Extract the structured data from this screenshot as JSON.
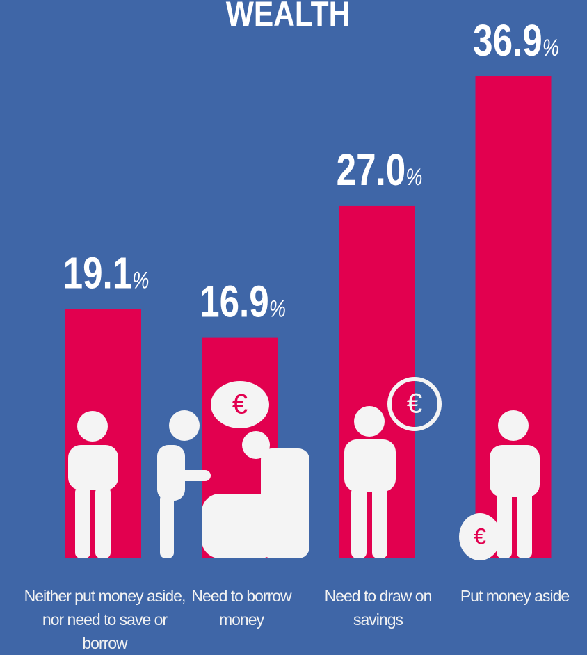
{
  "chart_data": {
    "type": "bar",
    "title": "WEALTH",
    "categories": [
      "Neither put money aside, nor need to save or borrow",
      "Need to borrow money",
      "Need to draw on savings",
      "Put money aside"
    ],
    "values": [
      19.1,
      16.9,
      27.0,
      36.9
    ],
    "value_labels": [
      "19.1%",
      "16.9%",
      "27.0%",
      "36.9%"
    ],
    "color": "#e2004f"
  }
}
